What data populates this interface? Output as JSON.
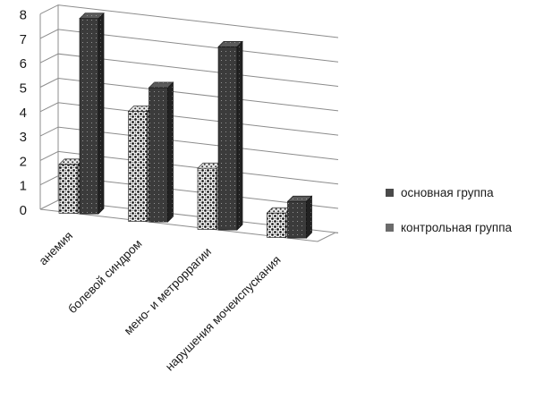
{
  "chart_data": {
    "type": "bar",
    "categories": [
      "анемия",
      "болевой синдром",
      "мено- и метроррагии",
      "нарушения мочеиспускания"
    ],
    "series": [
      {
        "name": "основная группа",
        "values": [
          2,
          4.5,
          2.5,
          1
        ]
      },
      {
        "name": "контрольная группа",
        "values": [
          8,
          5.5,
          7.5,
          1.5
        ]
      }
    ],
    "y_ticks": [
      "0",
      "1",
      "2",
      "3",
      "4",
      "5",
      "6",
      "7",
      "8"
    ],
    "ylim": [
      0,
      8
    ],
    "title": "",
    "xlabel": "",
    "ylabel": "",
    "grid": true,
    "legend_position": "right",
    "three_d": true,
    "colors": {
      "series_1_pattern": "#2b2b2b",
      "series_2_face": "#3a3a3a",
      "grid": "#8c8c8c"
    }
  }
}
